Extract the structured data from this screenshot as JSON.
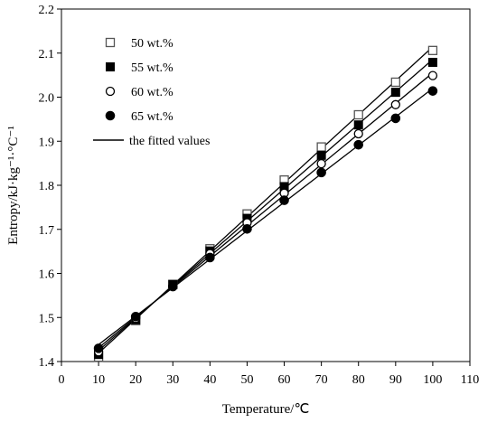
{
  "chart_data": {
    "type": "scatter",
    "xlabel": "Temperature/℃",
    "ylabel": "Entropy/kJ·kg⁻¹·°C⁻¹",
    "xlim": [
      0,
      110
    ],
    "ylim": [
      1.4,
      2.2
    ],
    "xticks": [
      "0",
      "10",
      "20",
      "30",
      "40",
      "50",
      "60",
      "70",
      "80",
      "90",
      "100",
      "110"
    ],
    "yticks": [
      "1.4",
      "1.5",
      "1.6",
      "1.7",
      "1.8",
      "1.9",
      "2.0",
      "2.1",
      "2.2"
    ],
    "grid": false,
    "legend_position": "top-left",
    "x": [
      10,
      20,
      30,
      40,
      50,
      60,
      70,
      80,
      90,
      100
    ],
    "series": [
      {
        "name": "50 wt.%",
        "marker": "open-square",
        "values": [
          1.41,
          1.493,
          1.575,
          1.656,
          1.735,
          1.812,
          1.887,
          1.96,
          2.034,
          2.106
        ]
      },
      {
        "name": "55 wt.%",
        "marker": "filled-square",
        "values": [
          1.416,
          1.495,
          1.575,
          1.651,
          1.725,
          1.797,
          1.868,
          1.937,
          2.011,
          2.079
        ]
      },
      {
        "name": "60 wt.%",
        "marker": "open-circle",
        "values": [
          1.422,
          1.498,
          1.572,
          1.645,
          1.715,
          1.782,
          1.849,
          1.917,
          1.983,
          2.049
        ]
      },
      {
        "name": "65 wt.%",
        "marker": "filled-circle",
        "values": [
          1.43,
          1.502,
          1.57,
          1.636,
          1.701,
          1.766,
          1.829,
          1.892,
          1.952,
          2.014
        ]
      }
    ],
    "fit_line_label": "the fitted values",
    "colors": {
      "axis": "#000000",
      "open_marker": "#555555",
      "filled_marker": "#000000",
      "line": "#000000"
    }
  }
}
